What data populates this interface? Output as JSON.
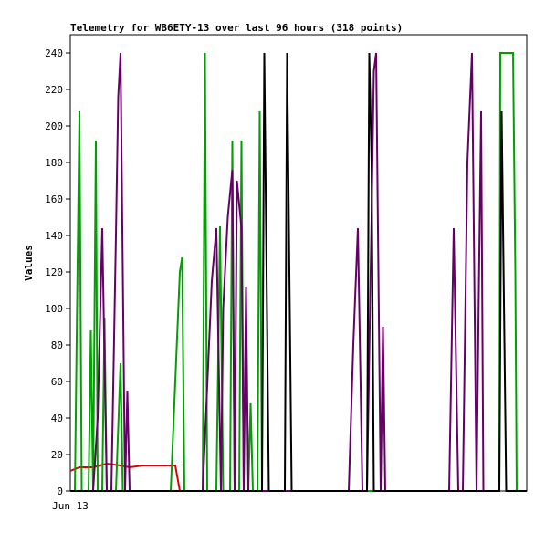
{
  "chart_data": {
    "type": "line",
    "title": "Telemetry for WB6ETY-13 over last 96 hours (318 points)",
    "ylabel": "Values",
    "xlabel": "",
    "x_tick_labels": [
      "Jun 13"
    ],
    "ylim": [
      0,
      250
    ],
    "yticks": [
      0,
      20,
      40,
      60,
      80,
      100,
      120,
      140,
      160,
      180,
      200,
      220,
      240
    ],
    "xlim": [
      0,
      100
    ],
    "grid": false,
    "legend": "none",
    "series": [
      {
        "color": "#dd0000",
        "points": [
          [
            0,
            11
          ],
          [
            2,
            13
          ],
          [
            5,
            13
          ],
          [
            8,
            15
          ],
          [
            11,
            14
          ],
          [
            13,
            13
          ],
          [
            16,
            14
          ],
          [
            19,
            14
          ],
          [
            22,
            14
          ],
          [
            23,
            14
          ],
          [
            24,
            0
          ]
        ]
      },
      {
        "color": "#00a000",
        "points": [
          [
            0,
            0
          ],
          [
            1,
            0
          ],
          [
            1.5,
            104
          ],
          [
            2,
            208
          ],
          [
            2.5,
            0
          ],
          [
            4,
            0
          ],
          [
            4.5,
            88
          ],
          [
            5,
            0
          ],
          [
            5.6,
            192
          ],
          [
            6,
            0
          ],
          [
            7,
            0
          ],
          [
            7.5,
            95
          ],
          [
            8,
            0
          ],
          [
            10,
            0
          ],
          [
            11,
            70
          ],
          [
            11.5,
            0
          ],
          [
            22,
            0
          ],
          [
            24,
            120
          ],
          [
            24.5,
            128
          ],
          [
            25,
            0
          ],
          [
            29,
            0
          ],
          [
            29.5,
            240
          ],
          [
            30,
            0
          ],
          [
            32,
            0
          ],
          [
            32.8,
            145
          ],
          [
            33.5,
            0
          ],
          [
            35,
            0
          ],
          [
            35.5,
            192
          ],
          [
            36,
            0
          ],
          [
            37,
            0
          ],
          [
            37.5,
            192
          ],
          [
            38,
            0
          ],
          [
            39,
            0
          ],
          [
            39.5,
            48
          ],
          [
            40,
            0
          ],
          [
            41,
            0
          ],
          [
            41.5,
            208
          ],
          [
            42,
            0
          ],
          [
            94,
            0
          ],
          [
            94.2,
            240
          ],
          [
            97,
            240
          ],
          [
            97.5,
            120
          ],
          [
            97.8,
            0
          ],
          [
            100,
            0
          ]
        ]
      },
      {
        "color": "#660066",
        "points": [
          [
            5,
            0
          ],
          [
            6,
            40
          ],
          [
            7,
            144
          ],
          [
            8,
            0
          ],
          [
            9,
            0
          ],
          [
            10,
            140
          ],
          [
            10.5,
            216
          ],
          [
            11,
            240
          ],
          [
            12,
            0
          ],
          [
            12.5,
            55
          ],
          [
            13,
            0
          ],
          [
            29,
            0
          ],
          [
            31,
            115
          ],
          [
            32,
            144
          ],
          [
            33,
            0
          ],
          [
            33.5,
            100
          ],
          [
            34.5,
            150
          ],
          [
            35.5,
            176
          ],
          [
            36,
            0
          ],
          [
            36.5,
            170
          ],
          [
            37.5,
            144
          ],
          [
            38,
            0
          ],
          [
            38.5,
            112
          ],
          [
            39,
            0
          ],
          [
            61,
            0
          ],
          [
            62,
            80
          ],
          [
            63,
            144
          ],
          [
            64,
            0
          ],
          [
            65,
            0
          ],
          [
            66,
            150
          ],
          [
            66.5,
            230
          ],
          [
            67,
            240
          ],
          [
            68,
            0
          ],
          [
            68.5,
            90
          ],
          [
            69,
            0
          ],
          [
            83,
            0
          ],
          [
            84,
            144
          ],
          [
            85,
            0
          ],
          [
            86,
            0
          ],
          [
            87,
            180
          ],
          [
            88,
            240
          ],
          [
            89,
            0
          ],
          [
            89.5,
            110
          ],
          [
            90,
            208
          ],
          [
            90.5,
            0
          ]
        ]
      },
      {
        "color": "#000000",
        "points": [
          [
            0,
            0
          ],
          [
            42,
            0
          ],
          [
            42.5,
            240
          ],
          [
            43,
            120
          ],
          [
            43.5,
            0
          ],
          [
            47,
            0
          ],
          [
            47.5,
            240
          ],
          [
            48,
            120
          ],
          [
            48.5,
            0
          ],
          [
            65,
            0
          ],
          [
            65.5,
            240
          ],
          [
            66,
            180
          ],
          [
            66.5,
            0
          ],
          [
            94,
            0
          ],
          [
            94.5,
            208
          ],
          [
            95,
            104
          ],
          [
            95.5,
            0
          ],
          [
            100,
            0
          ]
        ]
      }
    ]
  }
}
